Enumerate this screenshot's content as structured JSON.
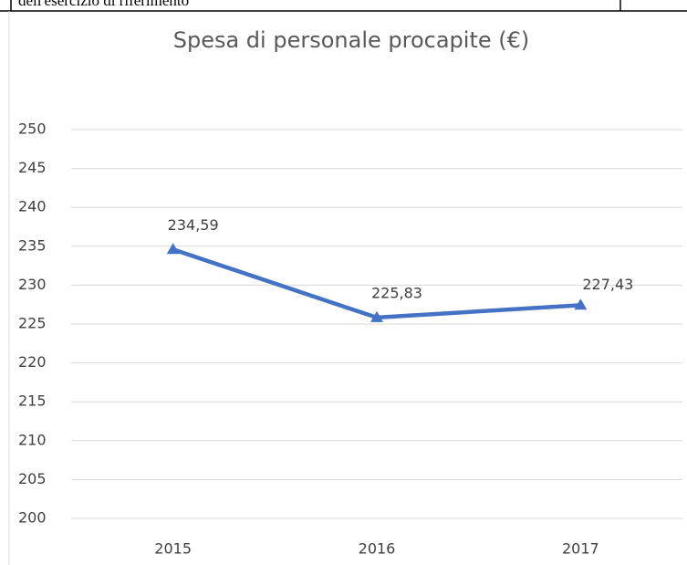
{
  "header": {
    "text": "dell'esercizio di riferimento"
  },
  "chart_data": {
    "type": "line",
    "title": "Spesa di personale procapite (€)",
    "categories": [
      "2015",
      "2016",
      "2017"
    ],
    "series": [
      {
        "name": "Spesa di personale procapite",
        "color": "#4472c4",
        "values": [
          234.59,
          225.83,
          227.43
        ],
        "value_labels": [
          "234,59",
          "225,83",
          "227,43"
        ]
      }
    ],
    "ylim": [
      200,
      250
    ],
    "yticks": [
      200,
      205,
      210,
      215,
      220,
      225,
      230,
      235,
      240,
      245,
      250
    ],
    "grid": true,
    "legend": false
  }
}
